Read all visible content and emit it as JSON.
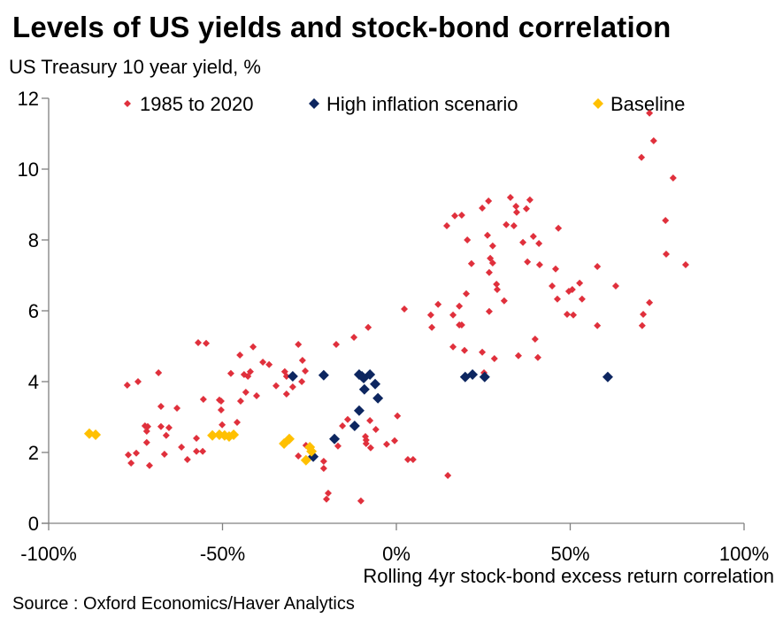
{
  "chart_data": {
    "type": "scatter",
    "title": "Levels of US yields and stock-bond correlation",
    "ylabel": "US Treasury 10 year yield, %",
    "xlabel": "Rolling 4yr stock-bond excess return correlation",
    "source": "Source : Oxford Economics/Haver Analytics",
    "xlim": [
      -100,
      100
    ],
    "ylim": [
      0,
      12
    ],
    "x_ticks": [
      -100,
      -50,
      0,
      50,
      100
    ],
    "x_tick_labels": [
      "-100%",
      "-50%",
      "0%",
      "50%",
      "100%"
    ],
    "y_ticks": [
      0,
      2,
      4,
      6,
      8,
      10,
      12
    ],
    "y_tick_labels": [
      "0",
      "2",
      "4",
      "6",
      "8",
      "10",
      "12"
    ],
    "grid": false,
    "legend_placement": "top",
    "series": [
      {
        "name": "1985 to 2020",
        "color": "#e0303c",
        "marker": "diamond-small",
        "points": [
          [
            -77.4,
            3.9
          ],
          [
            -74.3,
            4.0
          ],
          [
            -68.4,
            4.25
          ],
          [
            -57.0,
            5.1
          ],
          [
            -54.7,
            5.08
          ],
          [
            -41.2,
            4.98
          ],
          [
            -45.0,
            4.75
          ],
          [
            -38.4,
            4.55
          ],
          [
            -36.6,
            4.48
          ],
          [
            -28.2,
            5.05
          ],
          [
            -17.3,
            5.05
          ],
          [
            -12.2,
            5.25
          ],
          [
            -8.1,
            5.53
          ],
          [
            -47.6,
            4.23
          ],
          [
            -43.8,
            4.2
          ],
          [
            -42.7,
            4.15
          ],
          [
            -42.0,
            4.28
          ],
          [
            -32.1,
            4.28
          ],
          [
            -31.6,
            4.15
          ],
          [
            -26.2,
            4.3
          ],
          [
            -27.0,
            4.6
          ],
          [
            -27.2,
            4.0
          ],
          [
            -29.8,
            3.85
          ],
          [
            -34.6,
            3.88
          ],
          [
            -31.6,
            3.65
          ],
          [
            -40.2,
            3.6
          ],
          [
            -43.3,
            3.7
          ],
          [
            -44.8,
            3.45
          ],
          [
            -55.5,
            3.5
          ],
          [
            -50.9,
            3.48
          ],
          [
            -50.4,
            3.45
          ],
          [
            -50.4,
            3.2
          ],
          [
            -50.1,
            2.78
          ],
          [
            -45.8,
            2.85
          ],
          [
            -67.7,
            3.3
          ],
          [
            -63.1,
            3.25
          ],
          [
            -72.3,
            2.75
          ],
          [
            -71.5,
            2.73
          ],
          [
            -71.8,
            2.6
          ],
          [
            -67.7,
            2.73
          ],
          [
            -65.4,
            2.7
          ],
          [
            -66.2,
            2.48
          ],
          [
            -71.8,
            2.28
          ],
          [
            -77.1,
            1.93
          ],
          [
            -74.8,
            1.98
          ],
          [
            -76.3,
            1.7
          ],
          [
            -71.0,
            1.63
          ],
          [
            -66.7,
            1.95
          ],
          [
            -61.8,
            2.15
          ],
          [
            -60.1,
            1.8
          ],
          [
            -57.5,
            2.4
          ],
          [
            -57.5,
            2.03
          ],
          [
            -55.7,
            2.03
          ],
          [
            -26.0,
            2.2
          ],
          [
            -28.2,
            1.9
          ],
          [
            -20.9,
            1.75
          ],
          [
            -20.9,
            1.55
          ],
          [
            -19.6,
            0.85
          ],
          [
            -20.1,
            0.68
          ],
          [
            -10.2,
            0.63
          ],
          [
            -16.8,
            2.18
          ],
          [
            -15.5,
            2.75
          ],
          [
            -14.0,
            2.93
          ],
          [
            -7.6,
            2.9
          ],
          [
            -5.9,
            2.65
          ],
          [
            -8.9,
            2.45
          ],
          [
            -8.7,
            2.35
          ],
          [
            -8.7,
            2.25
          ],
          [
            -7.4,
            2.13
          ],
          [
            -2.8,
            2.23
          ],
          [
            -0.5,
            2.33
          ],
          [
            0.3,
            3.03
          ],
          [
            2.3,
            6.05
          ],
          [
            3.3,
            1.8
          ],
          [
            4.8,
            1.8
          ],
          [
            14.8,
            1.35
          ],
          [
            72.8,
            11.58
          ],
          [
            74.0,
            10.8
          ],
          [
            70.5,
            10.33
          ],
          [
            79.6,
            9.75
          ],
          [
            32.8,
            9.2
          ],
          [
            26.5,
            9.1
          ],
          [
            38.4,
            9.13
          ],
          [
            34.4,
            8.95
          ],
          [
            37.4,
            8.88
          ],
          [
            34.6,
            8.78
          ],
          [
            24.7,
            8.9
          ],
          [
            16.8,
            8.68
          ],
          [
            18.8,
            8.7
          ],
          [
            14.5,
            8.4
          ],
          [
            31.6,
            8.43
          ],
          [
            33.8,
            8.4
          ],
          [
            46.6,
            8.33
          ],
          [
            77.4,
            8.55
          ],
          [
            20.4,
            8.0
          ],
          [
            26.2,
            8.13
          ],
          [
            27.7,
            7.83
          ],
          [
            36.4,
            7.93
          ],
          [
            39.4,
            8.1
          ],
          [
            41.0,
            7.9
          ],
          [
            77.6,
            7.6
          ],
          [
            83.2,
            7.3
          ],
          [
            21.6,
            7.33
          ],
          [
            27.0,
            7.48
          ],
          [
            27.7,
            7.35
          ],
          [
            37.7,
            7.38
          ],
          [
            41.2,
            7.3
          ],
          [
            45.8,
            7.18
          ],
          [
            57.8,
            7.25
          ],
          [
            26.7,
            7.08
          ],
          [
            28.8,
            6.75
          ],
          [
            29.0,
            6.6
          ],
          [
            44.8,
            6.7
          ],
          [
            49.6,
            6.55
          ],
          [
            50.6,
            6.6
          ],
          [
            52.7,
            6.78
          ],
          [
            63.1,
            6.7
          ],
          [
            31.0,
            6.28
          ],
          [
            46.3,
            6.33
          ],
          [
            53.4,
            6.33
          ],
          [
            20.1,
            6.48
          ],
          [
            12.0,
            6.18
          ],
          [
            18.1,
            6.13
          ],
          [
            16.3,
            5.88
          ],
          [
            9.9,
            5.88
          ],
          [
            10.2,
            5.53
          ],
          [
            18.1,
            5.6
          ],
          [
            18.8,
            5.6
          ],
          [
            26.7,
            5.98
          ],
          [
            49.1,
            5.9
          ],
          [
            50.9,
            5.88
          ],
          [
            57.8,
            5.58
          ],
          [
            72.8,
            6.23
          ],
          [
            71.0,
            5.9
          ],
          [
            70.7,
            5.58
          ],
          [
            39.9,
            5.2
          ],
          [
            16.3,
            4.98
          ],
          [
            19.6,
            4.88
          ],
          [
            24.7,
            4.83
          ],
          [
            28.2,
            4.65
          ],
          [
            35.1,
            4.73
          ],
          [
            40.7,
            4.68
          ],
          [
            25.2,
            4.25
          ]
        ]
      },
      {
        "name": "High inflation scenario",
        "color": "#0d2660",
        "marker": "diamond",
        "points": [
          [
            -29.8,
            4.15
          ],
          [
            -20.9,
            4.18
          ],
          [
            -10.7,
            4.2
          ],
          [
            -9.9,
            4.15
          ],
          [
            -7.6,
            4.2
          ],
          [
            -9.4,
            4.1
          ],
          [
            -6.1,
            3.93
          ],
          [
            -9.2,
            3.78
          ],
          [
            -5.3,
            3.53
          ],
          [
            -10.7,
            3.18
          ],
          [
            -12.0,
            2.75
          ],
          [
            -17.8,
            2.38
          ],
          [
            -23.9,
            1.88
          ],
          [
            19.8,
            4.13
          ],
          [
            21.9,
            4.2
          ],
          [
            25.4,
            4.13
          ],
          [
            60.8,
            4.13
          ]
        ]
      },
      {
        "name": "Baseline",
        "color": "#ffc000",
        "marker": "diamond",
        "points": [
          [
            -88.3,
            2.53
          ],
          [
            -86.5,
            2.5
          ],
          [
            -52.9,
            2.48
          ],
          [
            -50.9,
            2.5
          ],
          [
            -49.4,
            2.48
          ],
          [
            -48.1,
            2.45
          ],
          [
            -46.8,
            2.5
          ],
          [
            -32.3,
            2.25
          ],
          [
            -30.8,
            2.38
          ],
          [
            -24.9,
            2.15
          ],
          [
            -24.4,
            2.03
          ],
          [
            -26.0,
            1.78
          ]
        ]
      }
    ]
  }
}
